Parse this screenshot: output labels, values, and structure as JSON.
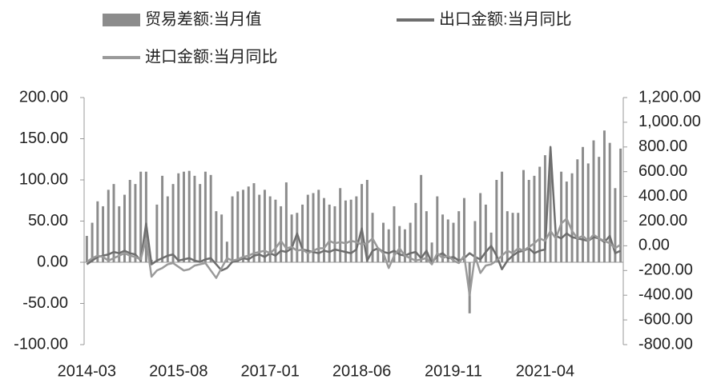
{
  "chart_data": {
    "type": "bar-line",
    "categories": [
      "2014-03",
      null,
      null,
      null,
      null,
      null,
      null,
      null,
      null,
      null,
      null,
      null,
      null,
      null,
      null,
      null,
      null,
      "2015-08",
      null,
      null,
      null,
      null,
      null,
      null,
      null,
      null,
      null,
      null,
      null,
      null,
      null,
      null,
      null,
      null,
      "2017-01",
      null,
      null,
      null,
      null,
      null,
      null,
      null,
      null,
      null,
      null,
      null,
      null,
      null,
      null,
      null,
      null,
      "2018-06",
      null,
      null,
      null,
      null,
      null,
      null,
      null,
      null,
      null,
      null,
      null,
      null,
      null,
      null,
      null,
      null,
      "2019-11",
      null,
      null,
      null,
      null,
      null,
      null,
      null,
      null,
      null,
      null,
      null,
      null,
      null,
      null,
      null,
      null,
      "2021-04",
      null,
      null,
      null,
      null,
      null,
      null,
      null,
      null,
      null,
      null,
      null,
      null,
      null,
      null
    ],
    "series": [
      {
        "name": "贸易差额:当月值",
        "kind": "bar",
        "axis": "y",
        "color": "#8c8c8c",
        "values": [
          32,
          48,
          74,
          68,
          88,
          95,
          68,
          82,
          100,
          95,
          110,
          110,
          3,
          70,
          105,
          80,
          95,
          108,
          110,
          111,
          105,
          95,
          110,
          106,
          62,
          58,
          25,
          80,
          86,
          88,
          92,
          96,
          82,
          88,
          80,
          76,
          68,
          97,
          58,
          60,
          70,
          82,
          84,
          88,
          78,
          70,
          68,
          90,
          75,
          76,
          80,
          95,
          100,
          60,
          18,
          48,
          40,
          68,
          44,
          40,
          48,
          72,
          106,
          62,
          24,
          80,
          58,
          52,
          48,
          62,
          78,
          -62,
          50,
          84,
          70,
          36,
          100,
          110,
          62,
          60,
          60,
          112,
          100,
          105,
          116,
          130,
          132,
          30,
          110,
          98,
          108,
          125,
          140,
          120,
          148,
          128,
          160,
          145,
          90,
          138
        ]
      },
      {
        "name": "出口金额:当月同比",
        "kind": "line",
        "axis": "y2",
        "color": "#6e6e6e",
        "values": [
          -150,
          -120,
          -90,
          -80,
          -70,
          -50,
          -60,
          -40,
          -60,
          -70,
          -120,
          180,
          -150,
          -120,
          -100,
          -80,
          -70,
          -120,
          -110,
          -100,
          -120,
          -130,
          -110,
          -100,
          -150,
          -200,
          -180,
          -130,
          -120,
          -100,
          -110,
          -80,
          -70,
          -90,
          -60,
          -80,
          -40,
          -50,
          -20,
          100,
          -30,
          -40,
          -50,
          -60,
          -40,
          -50,
          -30,
          -40,
          -50,
          -60,
          -30,
          140,
          -120,
          -40,
          -20,
          -50,
          -60,
          -40,
          -70,
          -80,
          -60,
          -50,
          -100,
          -40,
          -140,
          -80,
          -60,
          -100,
          -90,
          -120,
          -100,
          -60,
          -90,
          -110,
          -50,
          0,
          -80,
          -190,
          -120,
          -80,
          -50,
          -40,
          -20,
          -60,
          -40,
          -30,
          800,
          80,
          60,
          100,
          70,
          60,
          50,
          40,
          70,
          60,
          30,
          80,
          -60,
          -40
        ]
      },
      {
        "name": "进口金额:当月同比",
        "kind": "line",
        "axis": "y2",
        "color": "#9a9a9a",
        "values": [
          -130,
          -100,
          -80,
          -90,
          -120,
          -100,
          -80,
          -60,
          -80,
          -90,
          -110,
          60,
          -250,
          -200,
          -180,
          -150,
          -140,
          -170,
          -200,
          -190,
          -160,
          -150,
          -140,
          -200,
          -260,
          -180,
          -100,
          -120,
          -110,
          -90,
          -80,
          -60,
          -50,
          -40,
          -60,
          -20,
          40,
          -20,
          -10,
          -40,
          -30,
          -60,
          -40,
          -20,
          -20,
          40,
          20,
          30,
          20,
          40,
          30,
          10,
          20,
          60,
          -20,
          -60,
          -180,
          -80,
          -20,
          -80,
          -100,
          -120,
          -110,
          -100,
          -150,
          -60,
          -100,
          -80,
          -120,
          -140,
          -80,
          -400,
          -80,
          -220,
          -160,
          -150,
          -120,
          -80,
          -40,
          -60,
          -20,
          -40,
          -10,
          20,
          60,
          40,
          120,
          60,
          180,
          220,
          120,
          60,
          80,
          40,
          90,
          60,
          40,
          20,
          -20,
          10
        ]
      }
    ],
    "ylim": [
      -100,
      200
    ],
    "yticks": [
      {
        "value": -100,
        "label": "-100.00"
      },
      {
        "value": -50,
        "label": "-50.00"
      },
      {
        "value": 0,
        "label": "0.00"
      },
      {
        "value": 50,
        "label": "50.00"
      },
      {
        "value": 100,
        "label": "100.00"
      },
      {
        "value": 150,
        "label": "150.00"
      },
      {
        "value": 200,
        "label": "200.00"
      }
    ],
    "y2lim": [
      -800,
      1200
    ],
    "y2ticks": [
      {
        "value": -800,
        "label": "-800.00"
      },
      {
        "value": -600,
        "label": "-600.00"
      },
      {
        "value": -400,
        "label": "-400.00"
      },
      {
        "value": -200,
        "label": "-200.00"
      },
      {
        "value": 0,
        "label": "0.00"
      },
      {
        "value": 200,
        "label": "200.00"
      },
      {
        "value": 400,
        "label": "400.00"
      },
      {
        "value": 600,
        "label": "600.00"
      },
      {
        "value": 800,
        "label": "800.00"
      },
      {
        "value": 1000,
        "label": "1,000.00"
      },
      {
        "value": 1200,
        "label": "1,200.00"
      }
    ],
    "grid": false
  }
}
